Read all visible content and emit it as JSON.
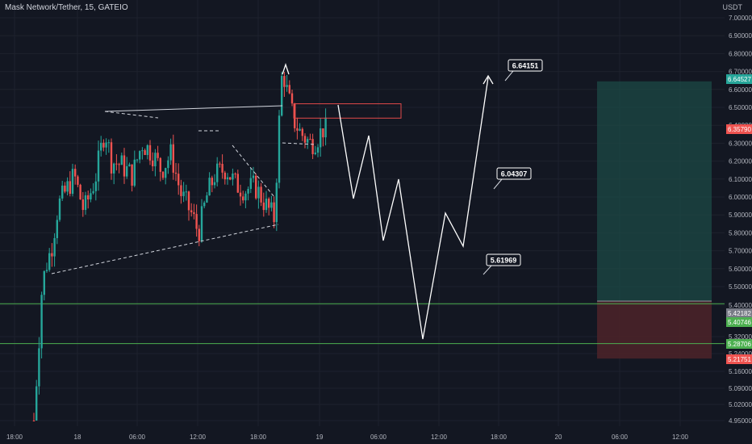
{
  "title": "Mask Network/Tether, 15, GATEIO",
  "unit": "USDT",
  "colors": {
    "background": "#131722",
    "bull": "#26a69a",
    "bear": "#ef5350",
    "text": "#b2b5be",
    "grid": "#1e222d",
    "target_zone": "#1c4a45",
    "stop_zone": "#4a2229",
    "resistance_box": "#e04a4a",
    "projection": "#ffffff"
  },
  "chart_data": {
    "type": "candlestick",
    "y_axis": {
      "ticks": [
        "7.00000",
        "6.90000",
        "6.80000",
        "6.70000",
        "6.60000",
        "6.50000",
        "6.40000",
        "6.30000",
        "6.20000",
        "6.10000",
        "6.00000",
        "5.90000",
        "5.80000",
        "5.70000",
        "5.60000",
        "5.50000",
        "5.40000",
        "5.32000",
        "5.24000",
        "5.16000",
        "5.09000",
        "5.02000",
        "4.95000"
      ]
    },
    "x_axis": {
      "ticks": [
        "18:00",
        "18",
        "06:00",
        "12:00",
        "18:00",
        "19",
        "06:00",
        "12:00",
        "18:00",
        "20",
        "06:00",
        "12:00"
      ]
    },
    "price_tags": [
      {
        "label": "6.64527",
        "value": 6.64527,
        "color": "#26a69a"
      },
      {
        "label": "6.35790",
        "value": 6.3579,
        "color": "#ef5350"
      },
      {
        "label": "5.42182",
        "value": 5.42182,
        "color": "#787b86"
      },
      {
        "label": "5.40746",
        "value": 5.40746,
        "color": "#4caf50"
      },
      {
        "label": "5.28706",
        "value": 5.28706,
        "color": "#4caf50"
      },
      {
        "label": "5.21751",
        "value": 5.21751,
        "color": "#ef5350"
      }
    ],
    "projection_labels": [
      {
        "label": "6.64151",
        "value": 6.64151
      },
      {
        "label": "6.04307",
        "value": 6.04307
      },
      {
        "label": "5.61969",
        "value": 5.61969
      }
    ],
    "zones": {
      "target": {
        "top": 6.64527,
        "bottom": 5.42182
      },
      "stop": {
        "top": 5.42182,
        "bottom": 5.21751
      }
    },
    "support_lines": [
      5.40746,
      5.28706
    ],
    "resistance_box": {
      "top": 6.52,
      "bottom": 6.44
    }
  }
}
